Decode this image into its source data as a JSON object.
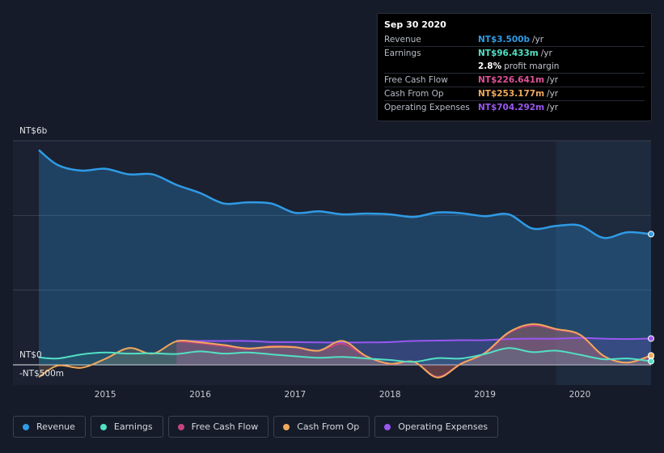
{
  "tooltip": {
    "date": "Sep 30 2020",
    "rows": [
      {
        "label": "Revenue",
        "value": "NT$3.500b",
        "unit": "/yr",
        "color": "#2f9be6"
      },
      {
        "label": "Earnings",
        "value": "NT$96.433m",
        "unit": "/yr",
        "color": "#52e0c4"
      },
      {
        "label": "",
        "value": "2.8%",
        "unit": "profit margin",
        "color": "#ffffff"
      },
      {
        "label": "Free Cash Flow",
        "value": "NT$226.641m",
        "unit": "/yr",
        "color": "#e0519a"
      },
      {
        "label": "Cash From Op",
        "value": "NT$253.177m",
        "unit": "/yr",
        "color": "#f0a95c"
      },
      {
        "label": "Operating Expenses",
        "value": "NT$704.292m",
        "unit": "/yr",
        "color": "#9b56f2"
      }
    ]
  },
  "axis": {
    "y_top": "NT$6b",
    "y_zero": "NT$0",
    "y_bottom": "-NT$500m"
  },
  "legend": [
    {
      "label": "Revenue",
      "color": "#2f9be6"
    },
    {
      "label": "Earnings",
      "color": "#52e0c4"
    },
    {
      "label": "Free Cash Flow",
      "color": "#c4447f"
    },
    {
      "label": "Cash From Op",
      "color": "#f0a95c"
    },
    {
      "label": "Operating Expenses",
      "color": "#9b56f2"
    }
  ],
  "chart_data": {
    "type": "area",
    "title": "",
    "ylabel": "",
    "ylim": [
      -500,
      6000
    ],
    "x_ticks": [
      "2015",
      "2016",
      "2017",
      "2018",
      "2019",
      "2020"
    ],
    "x_tick_values": [
      2015,
      2016,
      2017,
      2018,
      2019,
      2020
    ],
    "xlim": [
      2014.25,
      2020.75
    ],
    "highlight_from": 2019.75,
    "series": [
      {
        "name": "Revenue",
        "color": "#2f9be6",
        "x": [
          2014.3,
          2014.5,
          2014.75,
          2015.0,
          2015.25,
          2015.5,
          2015.75,
          2016.0,
          2016.25,
          2016.5,
          2016.75,
          2017.0,
          2017.25,
          2017.5,
          2017.75,
          2018.0,
          2018.25,
          2018.5,
          2018.75,
          2019.0,
          2019.25,
          2019.5,
          2019.75,
          2020.0,
          2020.25,
          2020.5,
          2020.75
        ],
        "values": [
          5750,
          5350,
          5200,
          5250,
          5100,
          5100,
          4820,
          4600,
          4320,
          4350,
          4320,
          4070,
          4110,
          4030,
          4050,
          4030,
          3960,
          4080,
          4060,
          3980,
          4030,
          3650,
          3720,
          3730,
          3400,
          3550,
          3500
        ]
      },
      {
        "name": "Earnings",
        "color": "#52e0c4",
        "x": [
          2014.3,
          2014.5,
          2014.75,
          2015.0,
          2015.25,
          2015.5,
          2015.75,
          2016.0,
          2016.25,
          2016.5,
          2016.75,
          2017.0,
          2017.25,
          2017.5,
          2017.75,
          2018.0,
          2018.25,
          2018.5,
          2018.75,
          2019.0,
          2019.25,
          2019.5,
          2019.75,
          2020.0,
          2020.25,
          2020.5,
          2020.75
        ],
        "values": [
          200,
          170,
          280,
          330,
          300,
          310,
          290,
          360,
          300,
          330,
          280,
          230,
          190,
          210,
          170,
          130,
          80,
          180,
          170,
          290,
          450,
          340,
          380,
          270,
          150,
          170,
          96
        ]
      },
      {
        "name": "Free Cash Flow",
        "color": "#c4447f",
        "x": [
          2015.75,
          2016.0,
          2016.25,
          2016.5,
          2016.75,
          2017.0,
          2017.25,
          2017.5,
          2017.75,
          2018.0,
          2018.25,
          2018.5,
          2018.75,
          2019.0,
          2019.25,
          2019.5,
          2019.75,
          2020.0,
          2020.25,
          2020.5,
          2020.75
        ],
        "values": [
          630,
          580,
          500,
          420,
          500,
          480,
          380,
          560,
          220,
          20,
          80,
          -320,
          40,
          300,
          850,
          1050,
          940,
          800,
          230,
          60,
          227
        ]
      },
      {
        "name": "Cash From Op",
        "color": "#f0a95c",
        "x": [
          2014.3,
          2014.5,
          2014.75,
          2015.0,
          2015.25,
          2015.5,
          2015.75,
          2016.0,
          2016.25,
          2016.5,
          2016.75,
          2017.0,
          2017.25,
          2017.5,
          2017.75,
          2018.0,
          2018.25,
          2018.5,
          2018.75,
          2019.0,
          2019.25,
          2019.5,
          2019.75,
          2020.0,
          2020.25,
          2020.5,
          2020.75
        ],
        "values": [
          -330,
          -20,
          -80,
          160,
          450,
          300,
          630,
          600,
          530,
          440,
          480,
          470,
          380,
          640,
          230,
          30,
          80,
          -340,
          30,
          320,
          870,
          1090,
          960,
          810,
          240,
          60,
          253
        ]
      },
      {
        "name": "Operating Expenses",
        "color": "#9b56f2",
        "x": [
          2015.75,
          2016.0,
          2016.25,
          2016.5,
          2016.75,
          2017.0,
          2017.25,
          2017.5,
          2017.75,
          2018.0,
          2018.25,
          2018.5,
          2018.75,
          2019.0,
          2019.25,
          2019.5,
          2019.75,
          2020.0,
          2020.25,
          2020.5,
          2020.75
        ],
        "values": [
          650,
          640,
          640,
          640,
          610,
          610,
          600,
          600,
          600,
          610,
          640,
          650,
          660,
          660,
          690,
          700,
          700,
          720,
          700,
          690,
          704
        ]
      }
    ]
  }
}
